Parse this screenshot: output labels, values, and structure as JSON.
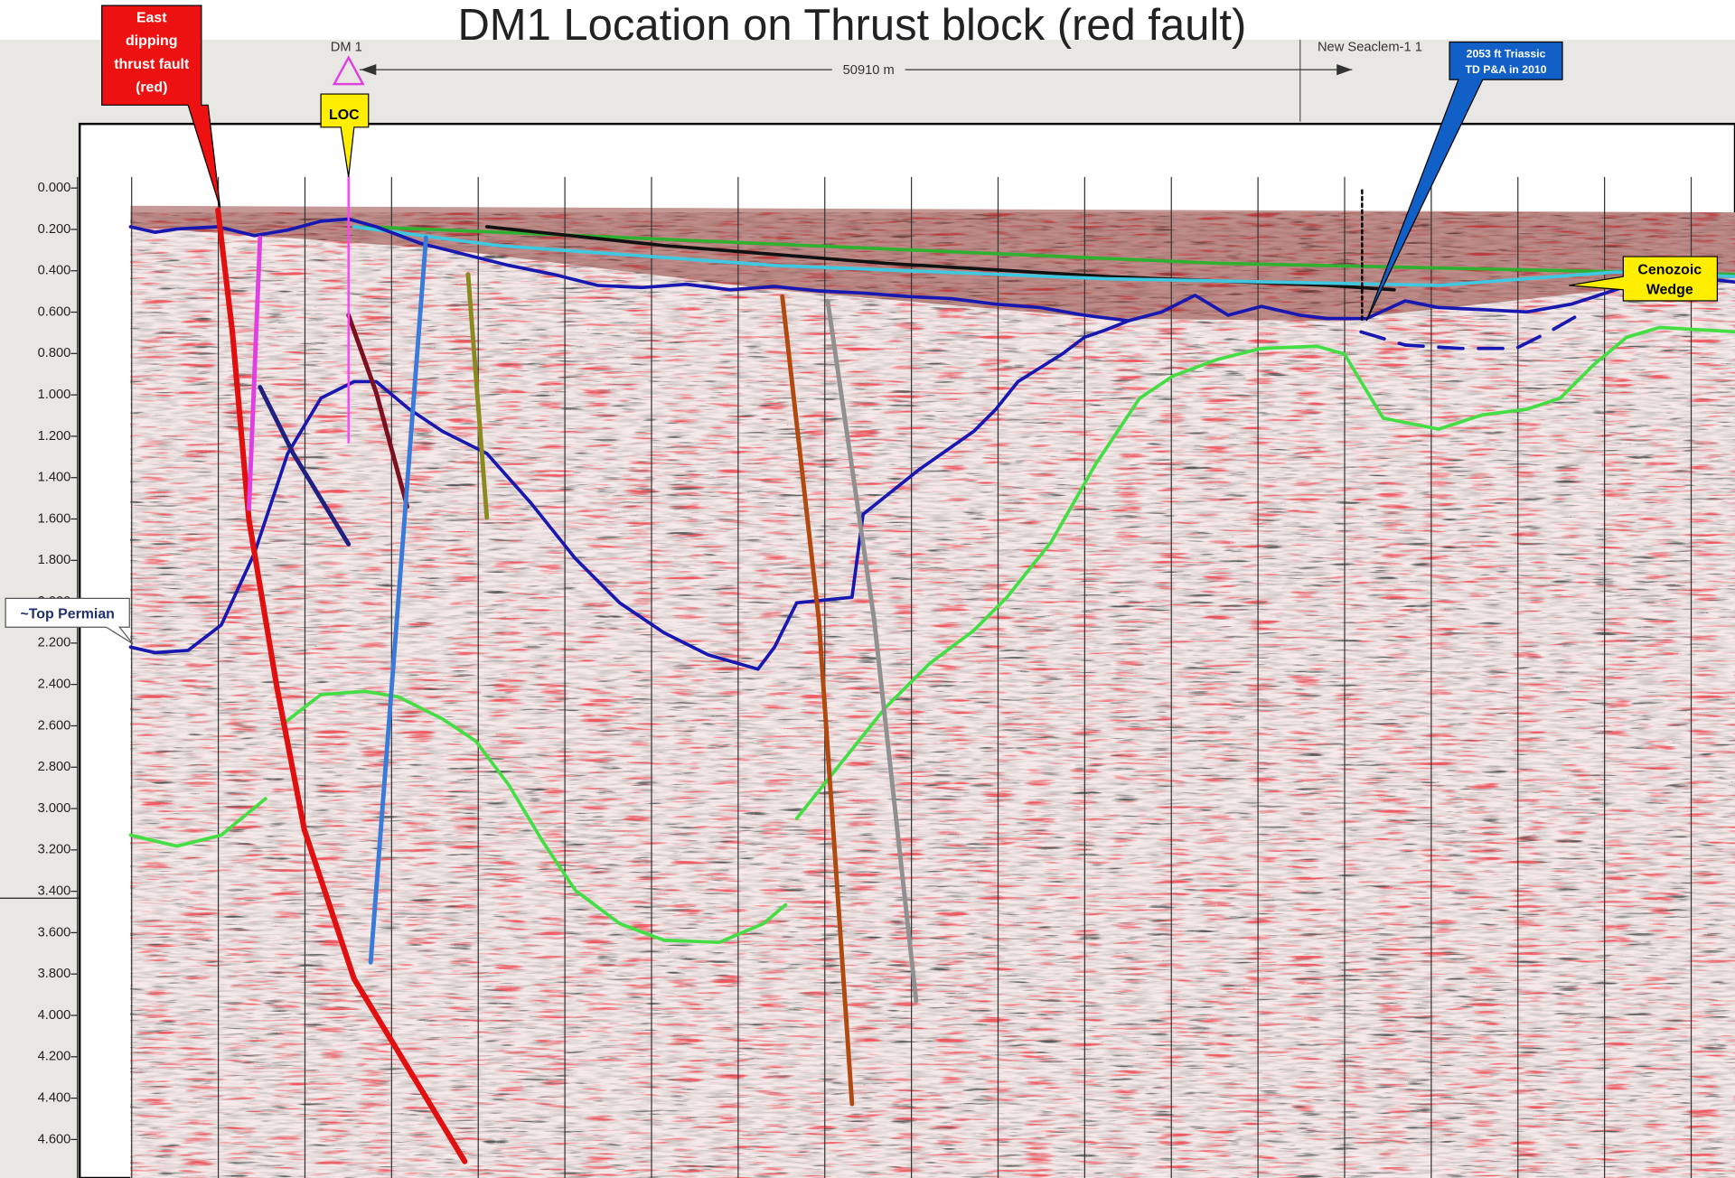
{
  "title": "DM1 Location on Thrust block (red fault)",
  "callouts": {
    "thrust_fault": [
      "East",
      "dipping",
      "thrust fault",
      "(red)"
    ],
    "loc": "LOC",
    "well_td": [
      "2053 ft Triassic",
      "TD P&A in 2010"
    ],
    "cenozoic": [
      "Cenozoic",
      "Wedge"
    ],
    "top_permian": "~Top Permian"
  },
  "wells": {
    "dm1": "DM 1",
    "seaclem": "New Seaclem-1 1"
  },
  "scale": "50910 m",
  "axis": {
    "ticks": [
      "0.000",
      "0.200",
      "0.400",
      "0.600",
      "0.800",
      "1.000",
      "1.200",
      "1.400",
      "1.600",
      "1.800",
      "2.000",
      "2.200",
      "2.400",
      "2.600",
      "2.800",
      "3.000",
      "3.200",
      "3.400",
      "3.600",
      "3.800",
      "4.000",
      "4.200",
      "4.400",
      "4.600"
    ]
  }
}
